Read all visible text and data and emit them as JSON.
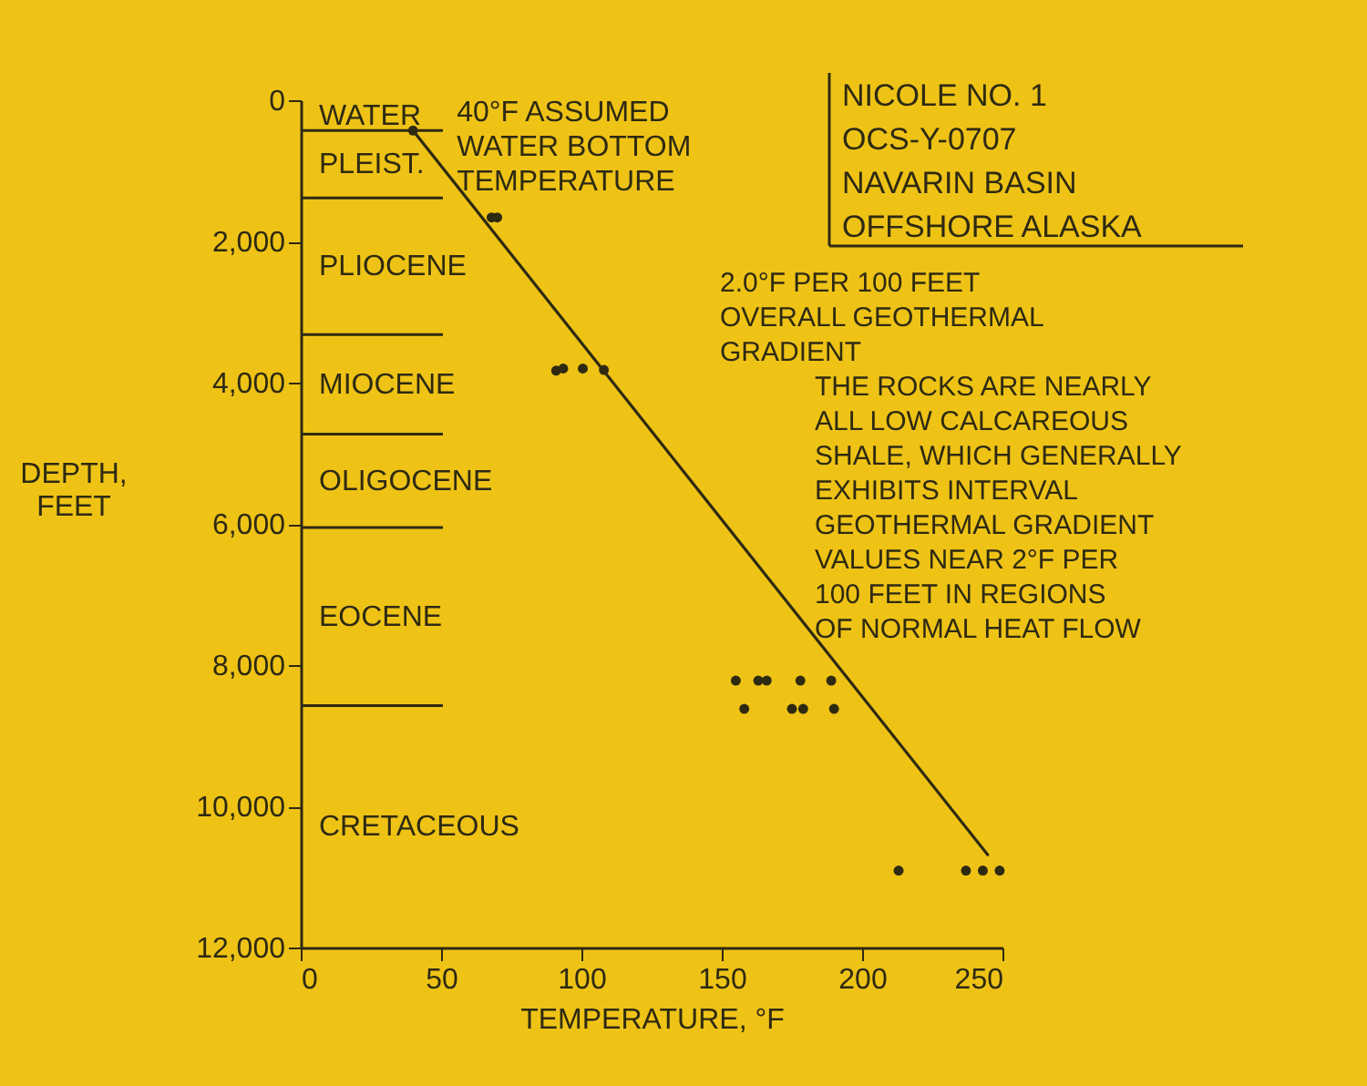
{
  "chart_data": {
    "type": "scatter",
    "xlabel": "TEMPERATURE, °F",
    "ylabel": "DEPTH,\nFEET",
    "xlim": [
      0,
      250
    ],
    "xticks": [
      0,
      50,
      100,
      150,
      200,
      250
    ],
    "ylim": [
      12000,
      0
    ],
    "yticks": [
      0,
      {
        "value": 2000,
        "label": "2,000"
      },
      {
        "value": 4000,
        "label": "4,000"
      },
      {
        "value": 6000,
        "label": "6,000"
      },
      {
        "value": 8000,
        "label": "8,000"
      },
      {
        "value": 10000,
        "label": "10,000"
      },
      {
        "value": 12000,
        "label": "12,000"
      }
    ],
    "grid": false,
    "series": [
      {
        "marker": "circle",
        "color": "#2e2a12",
        "x": [
          40,
          68,
          70,
          91,
          93.5,
          100.5,
          108,
          155,
          163,
          166,
          178,
          189,
          158,
          175,
          179,
          190,
          213,
          237,
          243,
          249
        ],
        "values": [
          430,
          1660,
          1660,
          3830,
          3800,
          3800,
          3820,
          8220,
          8220,
          8220,
          8220,
          8220,
          8620,
          8620,
          8620,
          8620,
          10910,
          10910,
          10910,
          10910
        ]
      },
      {
        "type": "line",
        "marker": "none",
        "line_style": "solid",
        "color": "#2e2a12",
        "x": [
          40,
          245
        ],
        "values": [
          430,
          10700
        ]
      }
    ],
    "ref_lines": [
      {
        "axis": "y",
        "value": 430
      },
      {
        "axis": "y",
        "value": 1385
      },
      {
        "axis": "y",
        "value": 3320
      },
      {
        "axis": "y",
        "value": 4730
      },
      {
        "axis": "y",
        "value": 6050
      },
      {
        "axis": "y",
        "value": 8575
      }
    ],
    "annotations": [
      "NICOLE NO. 1\nOCS-Y-0707\nNAVARIN BASIN\nOFFSHORE ALASKA",
      {
        "text": "40°F ASSUMED\nWATER BOTTOM\n TEMPERATURE",
        "x": 40,
        "y": 430
      },
      "2.0°F PER 100 FEET\nOVERALL GEOTHERMAL\nGRADIENT",
      "THE ROCKS ARE NEARLY\nALL LOW CALCAREOUS\nSHALE, WHICH GENERALLY\nEXHIBITS INTERVAL\n GEOTHERMAL GRADIENT\n  VALUES NEAR 2°F PER\n   100 FEET IN REGIONS\n    OF NORMAL HEAT FLOW",
      "WATER",
      "PLEIST.",
      "PLIOCENE",
      "MIOCENE",
      "OLIGOCENE",
      "EOCENE",
      "CRETACEOUS"
    ]
  }
}
